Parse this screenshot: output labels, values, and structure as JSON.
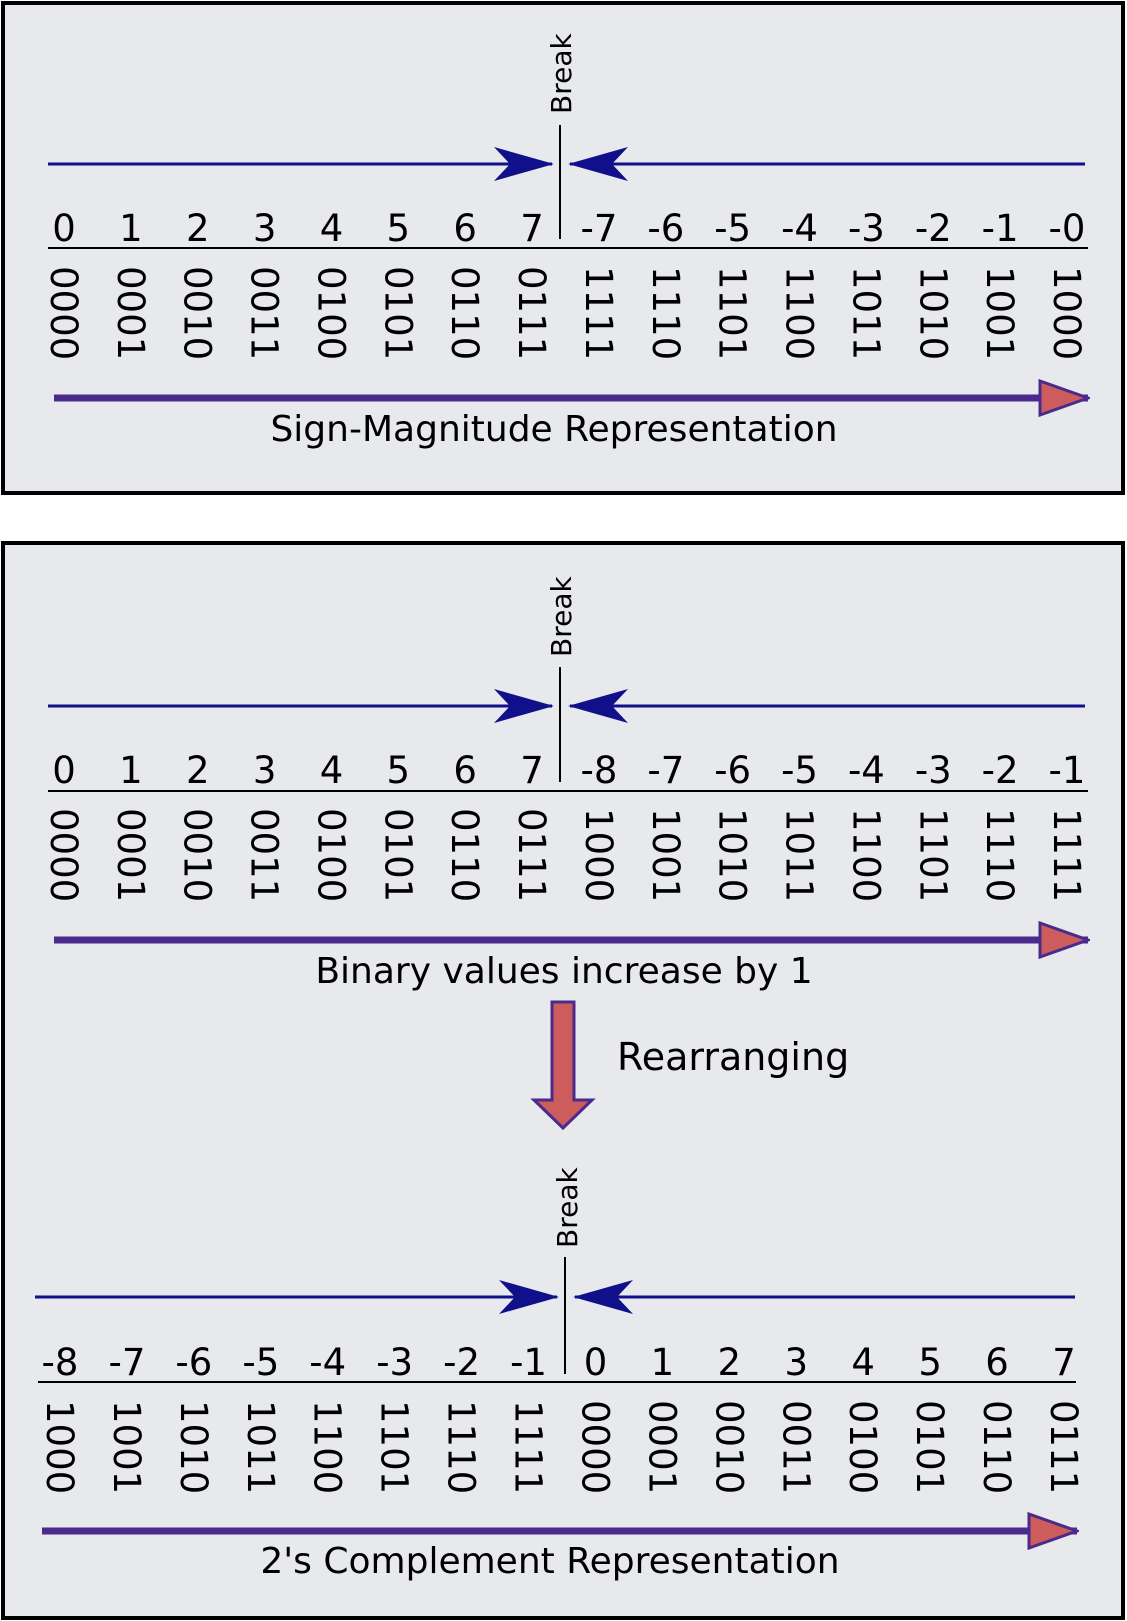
{
  "colors": {
    "panel_bg": "#e8e9ed",
    "panel_border": "#000000",
    "break_arrow": "#10108a",
    "direction_arrow": "#4a2a8c",
    "arrow_head_fill": "#cd5c5c"
  },
  "break_label": "Break",
  "rearranging_label": "Rearranging",
  "sign_magnitude": {
    "caption": "Sign-Magnitude Representation",
    "decimals": [
      "0",
      "1",
      "2",
      "3",
      "4",
      "5",
      "6",
      "7",
      "-7",
      "-6",
      "-5",
      "-4",
      "-3",
      "-2",
      "-1",
      "-0"
    ],
    "binaries": [
      "0000",
      "0001",
      "0010",
      "0011",
      "0100",
      "0101",
      "0110",
      "0111",
      "1111",
      "1110",
      "1101",
      "1100",
      "1011",
      "1010",
      "1001",
      "1000"
    ]
  },
  "binary_increase": {
    "caption": "Binary values increase by 1",
    "decimals": [
      "0",
      "1",
      "2",
      "3",
      "4",
      "5",
      "6",
      "7",
      "-8",
      "-7",
      "-6",
      "-5",
      "-4",
      "-3",
      "-2",
      "-1"
    ],
    "binaries": [
      "0000",
      "0001",
      "0010",
      "0011",
      "0100",
      "0101",
      "0110",
      "0111",
      "1000",
      "1001",
      "1010",
      "1011",
      "1100",
      "1101",
      "1110",
      "1111"
    ]
  },
  "twos_complement": {
    "caption": "2's Complement Representation",
    "decimals": [
      "-8",
      "-7",
      "-6",
      "-5",
      "-4",
      "-3",
      "-2",
      "-1",
      "0",
      "1",
      "2",
      "3",
      "4",
      "5",
      "6",
      "7"
    ],
    "binaries": [
      "1000",
      "1001",
      "1010",
      "1011",
      "1100",
      "1101",
      "1110",
      "1111",
      "0000",
      "0001",
      "0010",
      "0011",
      "0100",
      "0101",
      "0110",
      "0111"
    ]
  }
}
